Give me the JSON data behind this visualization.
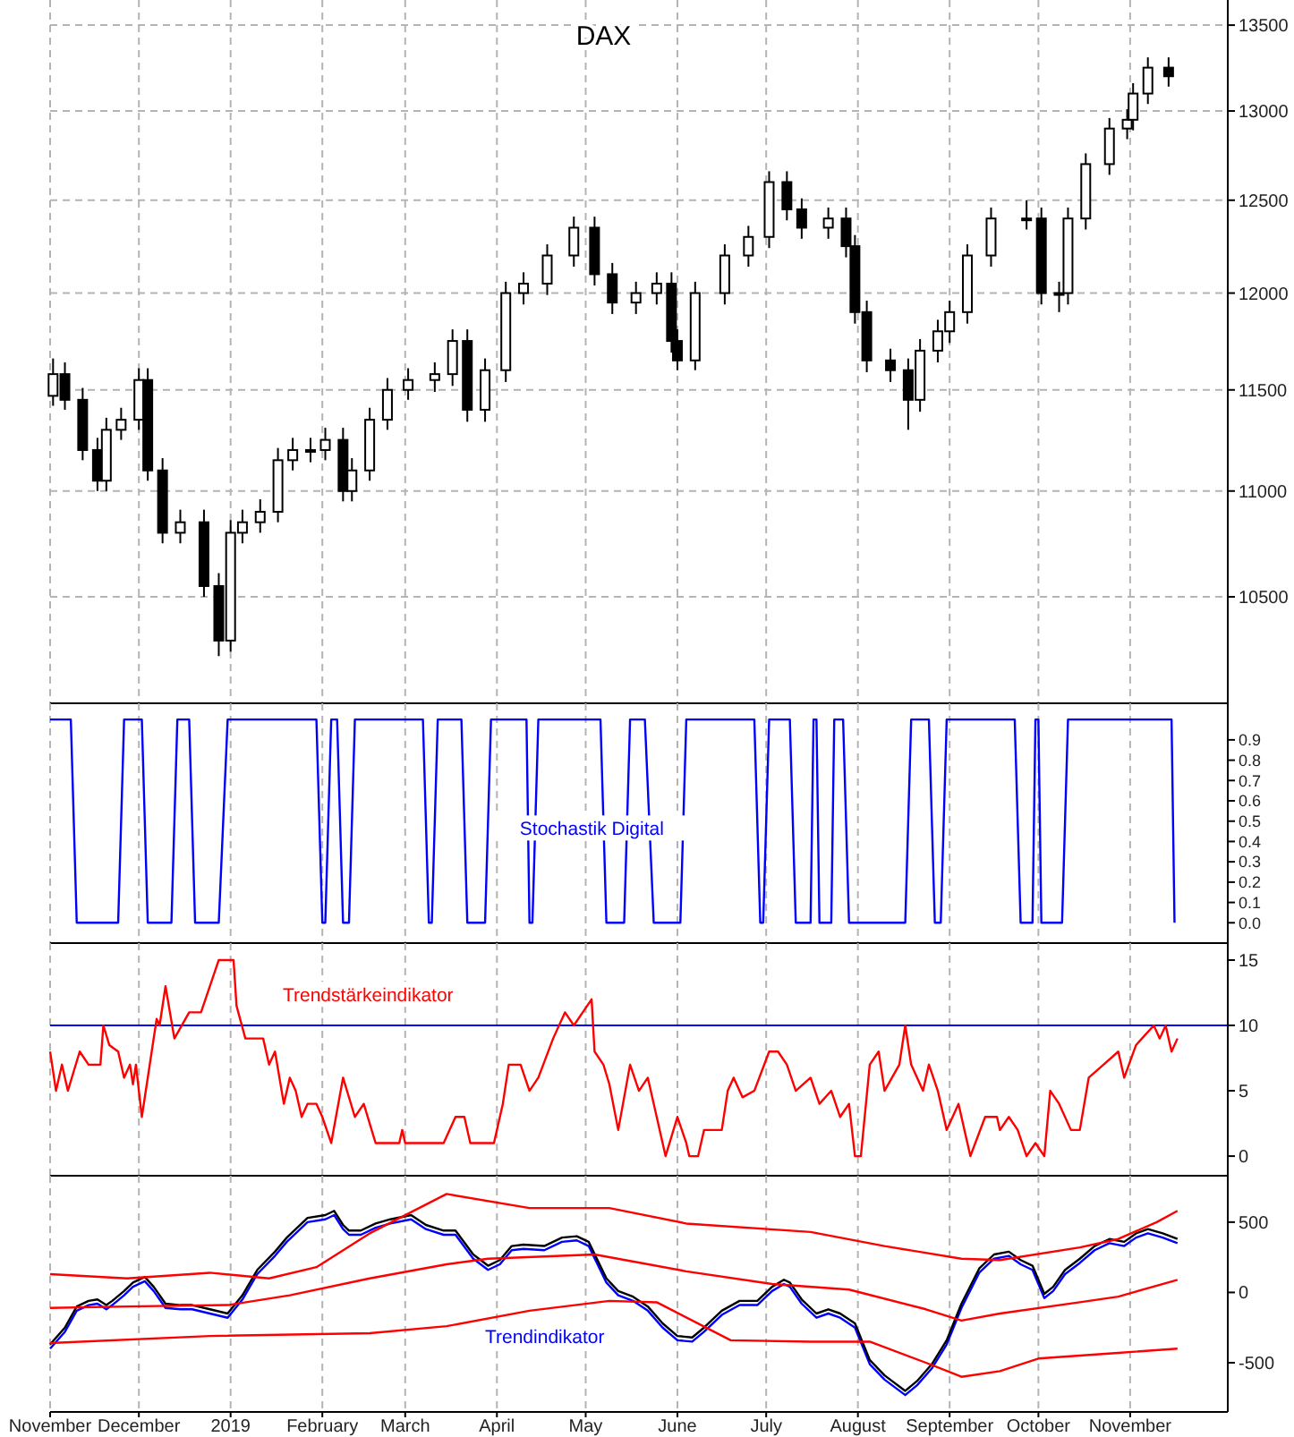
{
  "chart_data": [
    {
      "type": "candlestick",
      "title": "DAX",
      "log": true,
      "grid": true,
      "tick_labels": "y",
      "xlim": [
        "2018-11-01",
        "2019-12-04"
      ],
      "ylim": [
        10020,
        13650
      ],
      "xticks": [
        {
          "value": "2018-11-01",
          "label": null
        },
        {
          "value": "2018-12-01",
          "label": null
        },
        {
          "value": "2019-01-01",
          "label": null
        },
        {
          "value": "2019-02-01",
          "label": null
        },
        {
          "value": "2019-03-01",
          "label": null
        },
        {
          "value": "2019-04-01",
          "label": null
        },
        {
          "value": "2019-05-01",
          "label": null
        },
        {
          "value": "2019-06-01",
          "label": null
        },
        {
          "value": "2019-07-01",
          "label": null
        },
        {
          "value": "2019-08-01",
          "label": null
        },
        {
          "value": "2019-09-01",
          "label": null
        },
        {
          "value": "2019-10-01",
          "label": null
        },
        {
          "value": "2019-11-01",
          "label": null
        }
      ],
      "yticks": [
        10500,
        11000,
        11500,
        12000,
        12500,
        13000,
        13500
      ],
      "x": [
        "2018-11-02",
        "2018-11-06",
        "2018-11-12",
        "2018-11-17",
        "2018-11-20",
        "2018-11-25",
        "2018-12-01",
        "2018-12-04",
        "2018-12-09",
        "2018-12-15",
        "2018-12-23",
        "2018-12-28",
        "2019-01-01",
        "2019-01-05",
        "2019-01-11",
        "2019-01-17",
        "2019-01-22",
        "2019-01-28",
        "2019-02-02",
        "2019-02-08",
        "2019-02-11",
        "2019-02-17",
        "2019-02-23",
        "2019-03-02",
        "2019-03-11",
        "2019-03-17",
        "2019-03-22",
        "2019-03-28",
        "2019-04-04",
        "2019-04-10",
        "2019-04-18",
        "2019-04-27",
        "2019-05-04",
        "2019-05-10",
        "2019-05-18",
        "2019-05-25",
        "2019-05-30",
        "2019-06-01",
        "2019-06-07",
        "2019-06-17",
        "2019-06-25",
        "2019-07-02",
        "2019-07-08",
        "2019-07-13",
        "2019-07-22",
        "2019-07-28",
        "2019-07-31",
        "2019-08-04",
        "2019-08-12",
        "2019-08-18",
        "2019-08-22",
        "2019-08-28",
        "2019-09-01",
        "2019-09-07",
        "2019-09-15",
        "2019-09-27",
        "2019-10-02",
        "2019-10-08",
        "2019-10-11",
        "2019-10-17",
        "2019-10-25",
        "2019-10-31",
        "2019-11-02",
        "2019-11-07",
        "2019-11-14"
      ],
      "ohlc": [
        [
          11470,
          11660,
          11420,
          11580
        ],
        [
          11580,
          11640,
          11400,
          11450
        ],
        [
          11450,
          11510,
          11150,
          11200
        ],
        [
          11200,
          11260,
          11000,
          11050
        ],
        [
          11050,
          11360,
          11000,
          11300
        ],
        [
          11300,
          11410,
          11250,
          11350
        ],
        [
          11350,
          11610,
          11300,
          11550
        ],
        [
          11550,
          11610,
          11050,
          11100
        ],
        [
          11100,
          11160,
          10750,
          10800
        ],
        [
          10800,
          10910,
          10750,
          10850
        ],
        [
          10850,
          10910,
          10500,
          10550
        ],
        [
          10550,
          10610,
          10230,
          10300
        ],
        [
          10300,
          10860,
          10250,
          10800
        ],
        [
          10800,
          10910,
          10750,
          10850
        ],
        [
          10850,
          10960,
          10800,
          10900
        ],
        [
          10900,
          11210,
          10850,
          11150
        ],
        [
          11150,
          11260,
          11100,
          11200
        ],
        [
          11200,
          11260,
          11140,
          11200
        ],
        [
          11200,
          11310,
          11150,
          11250
        ],
        [
          11250,
          11310,
          10950,
          11000
        ],
        [
          11000,
          11160,
          10950,
          11100
        ],
        [
          11100,
          11410,
          11050,
          11350
        ],
        [
          11350,
          11560,
          11300,
          11500
        ],
        [
          11500,
          11610,
          11450,
          11550
        ],
        [
          11550,
          11640,
          11490,
          11580
        ],
        [
          11580,
          11810,
          11520,
          11750
        ],
        [
          11750,
          11810,
          11340,
          11400
        ],
        [
          11400,
          11660,
          11340,
          11600
        ],
        [
          11600,
          12060,
          11540,
          12000
        ],
        [
          12000,
          12110,
          11940,
          12050
        ],
        [
          12050,
          12260,
          11990,
          12200
        ],
        [
          12200,
          12410,
          12140,
          12350
        ],
        [
          12350,
          12410,
          12040,
          12100
        ],
        [
          12100,
          12160,
          11890,
          11950
        ],
        [
          11950,
          12060,
          11890,
          12000
        ],
        [
          12000,
          12110,
          11940,
          12050
        ],
        [
          12050,
          12110,
          11690,
          11750
        ],
        [
          11750,
          11810,
          11600,
          11650
        ],
        [
          11650,
          12060,
          11600,
          12000
        ],
        [
          12000,
          12260,
          11940,
          12200
        ],
        [
          12200,
          12360,
          12140,
          12300
        ],
        [
          12300,
          12660,
          12240,
          12600
        ],
        [
          12600,
          12660,
          12390,
          12450
        ],
        [
          12450,
          12510,
          12290,
          12350
        ],
        [
          12350,
          12460,
          12290,
          12400
        ],
        [
          12400,
          12460,
          12190,
          12250
        ],
        [
          12250,
          12310,
          11840,
          11900
        ],
        [
          11900,
          11960,
          11590,
          11650
        ],
        [
          11650,
          11710,
          11540,
          11600
        ],
        [
          11600,
          11660,
          11300,
          11450
        ],
        [
          11450,
          11760,
          11390,
          11700
        ],
        [
          11700,
          11860,
          11640,
          11800
        ],
        [
          11800,
          11960,
          11740,
          11900
        ],
        [
          11900,
          12260,
          11840,
          12200
        ],
        [
          12200,
          12460,
          12140,
          12400
        ],
        [
          12400,
          12500,
          12340,
          12400
        ],
        [
          12400,
          12460,
          11940,
          12000
        ],
        [
          12000,
          12060,
          11900,
          12000
        ],
        [
          12000,
          12460,
          11940,
          12400
        ],
        [
          12400,
          12760,
          12340,
          12700
        ],
        [
          12700,
          12960,
          12640,
          12900
        ],
        [
          12900,
          13010,
          12840,
          12950
        ],
        [
          12950,
          13160,
          12890,
          13100
        ],
        [
          13100,
          13310,
          13040,
          13250
        ],
        [
          13250,
          13310,
          13140,
          13200
        ]
      ]
    },
    {
      "type": "line",
      "title": "Stochastik Digital",
      "grid": "x",
      "tick_labels": "y",
      "xlim": [
        "2018-11-01",
        "2019-12-04"
      ],
      "ylim": [
        -0.1,
        1.08
      ],
      "xticks": [
        {
          "value": "2018-11-01",
          "label": null
        },
        {
          "value": "2018-12-01",
          "label": null
        },
        {
          "value": "2019-01-01",
          "label": null
        },
        {
          "value": "2019-02-01",
          "label": null
        },
        {
          "value": "2019-03-01",
          "label": null
        },
        {
          "value": "2019-04-01",
          "label": null
        },
        {
          "value": "2019-05-01",
          "label": null
        },
        {
          "value": "2019-06-01",
          "label": null
        },
        {
          "value": "2019-07-01",
          "label": null
        },
        {
          "value": "2019-08-01",
          "label": null
        },
        {
          "value": "2019-09-01",
          "label": null
        },
        {
          "value": "2019-10-01",
          "label": null
        },
        {
          "value": "2019-11-01",
          "label": null
        }
      ],
      "yticks": [
        {
          "value": 0,
          "label": "0.0"
        },
        {
          "value": 0.1,
          "label": "0.1"
        },
        {
          "value": 0.2,
          "label": "0.2"
        },
        {
          "value": 0.3,
          "label": "0.3"
        },
        {
          "value": 0.4,
          "label": "0.4"
        },
        {
          "value": 0.5,
          "label": "0.5"
        },
        {
          "value": 0.6,
          "label": "0.6"
        },
        {
          "value": 0.7,
          "label": "0.7"
        },
        {
          "value": 0.8,
          "label": "0.8"
        },
        {
          "value": 0.9,
          "label": "0.9"
        }
      ],
      "series": [
        {
          "color": "#0000ff",
          "x": [
            "2018-11-01",
            "2018-11-08",
            "2018-11-10",
            "2018-11-24",
            "2018-11-26",
            "2018-12-02",
            "2018-12-04",
            "2018-12-12",
            "2018-12-14",
            "2018-12-18",
            "2018-12-20",
            "2018-12-28",
            "2018-12-31",
            "2019-01-30",
            "2019-02-01",
            "2019-02-02",
            "2019-02-04",
            "2019-02-06",
            "2019-02-08",
            "2019-02-10",
            "2019-02-12",
            "2019-03-07",
            "2019-03-09",
            "2019-03-10",
            "2019-03-12",
            "2019-03-20",
            "2019-03-22",
            "2019-03-28",
            "2019-03-30",
            "2019-04-11",
            "2019-04-12",
            "2019-04-13",
            "2019-04-15",
            "2019-05-06",
            "2019-05-08",
            "2019-05-14",
            "2019-05-16",
            "2019-05-21",
            "2019-05-24",
            "2019-06-02",
            "2019-06-04",
            "2019-06-27",
            "2019-06-29",
            "2019-06-30",
            "2019-07-02",
            "2019-07-09",
            "2019-07-11",
            "2019-07-16",
            "2019-07-17",
            "2019-07-18",
            "2019-07-19",
            "2019-07-23",
            "2019-07-24",
            "2019-07-27",
            "2019-07-29",
            "2019-08-17",
            "2019-08-19",
            "2019-08-25",
            "2019-08-27",
            "2019-08-29",
            "2019-08-31",
            "2019-09-23",
            "2019-09-25",
            "2019-09-29",
            "2019-09-30",
            "2019-10-01",
            "2019-10-02",
            "2019-10-09",
            "2019-10-11",
            "2019-11-15",
            "2019-11-16"
          ],
          "values": [
            1,
            1,
            0,
            0,
            1,
            1,
            0,
            0,
            1,
            1,
            0,
            0,
            1,
            1,
            0,
            0,
            1,
            1,
            0,
            0,
            1,
            1,
            0,
            0,
            1,
            1,
            0,
            0,
            1,
            1,
            0,
            0,
            1,
            1,
            0,
            0,
            1,
            1,
            0,
            0,
            1,
            1,
            0,
            0,
            1,
            1,
            0,
            0,
            1,
            1,
            0,
            0,
            1,
            1,
            0,
            0,
            1,
            1,
            0,
            0,
            1,
            1,
            0,
            0,
            1,
            1,
            0,
            0,
            1,
            1,
            0
          ]
        }
      ]
    },
    {
      "type": "line",
      "title": "Trendstärkeindikator",
      "grid": "x",
      "tick_labels": "y",
      "xlim": [
        "2018-11-01",
        "2019-12-04"
      ],
      "ylim": [
        -1.5,
        16.3
      ],
      "xticks": [
        {
          "value": "2018-11-01",
          "label": null
        },
        {
          "value": "2018-12-01",
          "label": null
        },
        {
          "value": "2019-01-01",
          "label": null
        },
        {
          "value": "2019-02-01",
          "label": null
        },
        {
          "value": "2019-03-01",
          "label": null
        },
        {
          "value": "2019-04-01",
          "label": null
        },
        {
          "value": "2019-05-01",
          "label": null
        },
        {
          "value": "2019-06-01",
          "label": null
        },
        {
          "value": "2019-07-01",
          "label": null
        },
        {
          "value": "2019-08-01",
          "label": null
        },
        {
          "value": "2019-09-01",
          "label": null
        },
        {
          "value": "2019-10-01",
          "label": null
        },
        {
          "value": "2019-11-01",
          "label": null
        }
      ],
      "yticks": [
        0,
        5,
        10,
        15
      ],
      "ref_lines": [
        {
          "axis": "y",
          "value": 10,
          "color": "#0000ff"
        }
      ],
      "series": [
        {
          "color": "#ff0000",
          "x": [
            "2018-11-01",
            "2018-11-03",
            "2018-11-05",
            "2018-11-07",
            "2018-11-11",
            "2018-11-14",
            "2018-11-18",
            "2018-11-19",
            "2018-11-21",
            "2018-11-24",
            "2018-11-26",
            "2018-11-28",
            "2018-11-29",
            "2018-11-30",
            "2018-12-02",
            "2018-12-04",
            "2018-12-07",
            "2018-12-08",
            "2018-12-10",
            "2018-12-13",
            "2018-12-18",
            "2018-12-22",
            "2018-12-25",
            "2018-12-28",
            "2019-01-02",
            "2019-01-03",
            "2019-01-06",
            "2019-01-12",
            "2019-01-14",
            "2019-01-16",
            "2019-01-19",
            "2019-01-21",
            "2019-01-23",
            "2019-01-25",
            "2019-01-27",
            "2019-01-30",
            "2019-02-01",
            "2019-02-04",
            "2019-02-08",
            "2019-02-12",
            "2019-02-15",
            "2019-02-19",
            "2019-02-27",
            "2019-02-28",
            "2019-03-01",
            "2019-03-14",
            "2019-03-18",
            "2019-03-21",
            "2019-03-23",
            "2019-03-31",
            "2019-04-03",
            "2019-04-05",
            "2019-04-09",
            "2019-04-12",
            "2019-04-15",
            "2019-04-20",
            "2019-04-24",
            "2019-04-27",
            "2019-04-30",
            "2019-05-03",
            "2019-05-04",
            "2019-05-07",
            "2019-05-09",
            "2019-05-12",
            "2019-05-16",
            "2019-05-19",
            "2019-05-22",
            "2019-05-25",
            "2019-05-28",
            "2019-06-01",
            "2019-06-04",
            "2019-06-05",
            "2019-06-08",
            "2019-06-10",
            "2019-06-16",
            "2019-06-18",
            "2019-06-20",
            "2019-06-23",
            "2019-06-27",
            "2019-07-02",
            "2019-07-05",
            "2019-07-08",
            "2019-07-11",
            "2019-07-16",
            "2019-07-19",
            "2019-07-23",
            "2019-07-26",
            "2019-07-29",
            "2019-07-31",
            "2019-08-02",
            "2019-08-05",
            "2019-08-08",
            "2019-08-10",
            "2019-08-15",
            "2019-08-17",
            "2019-08-19",
            "2019-08-23",
            "2019-08-25",
            "2019-08-28",
            "2019-08-31",
            "2019-09-04",
            "2019-09-08",
            "2019-09-13",
            "2019-09-17",
            "2019-09-18",
            "2019-09-21",
            "2019-09-24",
            "2019-09-27",
            "2019-09-30",
            "2019-10-03",
            "2019-10-05",
            "2019-10-08",
            "2019-10-12",
            "2019-10-15",
            "2019-10-18",
            "2019-10-23",
            "2019-10-28",
            "2019-10-30",
            "2019-11-03",
            "2019-11-09",
            "2019-11-11",
            "2019-11-13",
            "2019-11-15",
            "2019-11-17"
          ],
          "values": [
            8,
            5,
            7,
            5,
            8,
            7,
            7,
            10,
            8.5,
            8,
            6,
            7,
            5.5,
            7,
            3,
            6,
            10.5,
            10,
            13,
            9,
            11,
            11,
            13,
            15,
            15,
            11.5,
            9,
            9,
            7,
            8,
            4,
            6,
            5,
            3,
            4,
            4,
            3,
            1,
            6,
            3,
            4,
            1,
            1,
            2,
            1,
            1,
            3,
            3,
            1,
            1,
            4,
            7,
            7,
            5,
            6,
            9,
            11,
            10,
            11,
            12,
            8,
            7,
            5.5,
            2,
            7,
            5,
            6,
            3,
            0,
            3,
            1,
            0,
            0,
            2,
            2,
            5,
            6,
            4.5,
            5,
            8,
            8,
            7,
            5,
            6,
            4,
            5,
            3,
            4,
            0,
            0,
            7,
            8,
            5,
            7,
            10,
            7,
            5,
            7,
            5,
            2,
            4,
            0,
            3,
            3,
            2,
            3,
            2,
            0,
            1,
            0,
            5,
            4,
            2,
            2,
            6,
            7,
            8,
            6,
            8.5,
            10,
            9,
            10,
            8,
            9
          ]
        }
      ]
    },
    {
      "type": "line",
      "title": "Trendindikator",
      "grid": "x",
      "xlim": [
        "2018-11-01",
        "2019-12-04"
      ],
      "ylim": [
        -850,
        830
      ],
      "xticks": [
        {
          "value": "2018-11-01",
          "label": "November"
        },
        {
          "value": "2018-12-01",
          "label": "December"
        },
        {
          "value": "2019-01-01",
          "label": "2019"
        },
        {
          "value": "2019-02-01",
          "label": "February"
        },
        {
          "value": "2019-03-01",
          "label": "March"
        },
        {
          "value": "2019-04-01",
          "label": "April"
        },
        {
          "value": "2019-05-01",
          "label": "May"
        },
        {
          "value": "2019-06-01",
          "label": "June"
        },
        {
          "value": "2019-07-01",
          "label": "July"
        },
        {
          "value": "2019-08-01",
          "label": "August"
        },
        {
          "value": "2019-09-01",
          "label": "September"
        },
        {
          "value": "2019-10-01",
          "label": "October"
        },
        {
          "value": "2019-11-01",
          "label": "November"
        }
      ],
      "yticks": [
        -500,
        0,
        500
      ],
      "series": [
        {
          "color": "#0000ff",
          "x": [
            "2018-11-01",
            "2018-11-06",
            "2018-11-10",
            "2018-11-14",
            "2018-11-17",
            "2018-11-20",
            "2018-11-22",
            "2018-11-26",
            "2018-11-29",
            "2018-12-03",
            "2018-12-06",
            "2018-12-10",
            "2018-12-15",
            "2018-12-19",
            "2018-12-25",
            "2018-12-31",
            "2019-01-05",
            "2019-01-10",
            "2019-01-16",
            "2019-01-20",
            "2019-01-27",
            "2019-02-02",
            "2019-02-05",
            "2019-02-08",
            "2019-02-10",
            "2019-02-14",
            "2019-02-19",
            "2019-02-24",
            "2019-03-03",
            "2019-03-08",
            "2019-03-14",
            "2019-03-18",
            "2019-03-24",
            "2019-03-29",
            "2019-04-02",
            "2019-04-06",
            "2019-04-10",
            "2019-04-17",
            "2019-04-23",
            "2019-04-28",
            "2019-05-02",
            "2019-05-08",
            "2019-05-12",
            "2019-05-17",
            "2019-05-22",
            "2019-05-27",
            "2019-06-01",
            "2019-06-06",
            "2019-06-10",
            "2019-06-16",
            "2019-06-22",
            "2019-06-28",
            "2019-07-03",
            "2019-07-07",
            "2019-07-09",
            "2019-07-13",
            "2019-07-18",
            "2019-07-22",
            "2019-07-26",
            "2019-07-31",
            "2019-08-05",
            "2019-08-10",
            "2019-08-17",
            "2019-08-21",
            "2019-08-26",
            "2019-08-31",
            "2019-09-05",
            "2019-09-11",
            "2019-09-16",
            "2019-09-21",
            "2019-09-25",
            "2019-09-29",
            "2019-10-03",
            "2019-10-06",
            "2019-10-10",
            "2019-10-15",
            "2019-10-20",
            "2019-10-25",
            "2019-10-30",
            "2019-11-03",
            "2019-11-07",
            "2019-11-12",
            "2019-11-17"
          ],
          "values": [
            -400,
            -280,
            -130,
            -90,
            -80,
            -120,
            -90,
            -20,
            40,
            80,
            10,
            -110,
            -120,
            -120,
            -150,
            -180,
            -50,
            130,
            260,
            360,
            500,
            520,
            550,
            450,
            410,
            410,
            460,
            490,
            520,
            450,
            410,
            410,
            240,
            160,
            200,
            300,
            310,
            300,
            360,
            370,
            330,
            70,
            -20,
            -60,
            -130,
            -250,
            -340,
            -350,
            -280,
            -160,
            -90,
            -90,
            10,
            60,
            40,
            -80,
            -180,
            -150,
            -180,
            -250,
            -510,
            -620,
            -730,
            -660,
            -540,
            -370,
            -110,
            140,
            240,
            260,
            200,
            160,
            -40,
            10,
            130,
            210,
            300,
            350,
            330,
            390,
            420,
            390,
            350
          ]
        },
        {
          "color": "#000000",
          "x": [
            "2018-11-01",
            "2018-11-06",
            "2018-11-10",
            "2018-11-14",
            "2018-11-17",
            "2018-11-20",
            "2018-11-22",
            "2018-11-26",
            "2018-11-29",
            "2018-12-03",
            "2018-12-06",
            "2018-12-10",
            "2018-12-15",
            "2018-12-19",
            "2018-12-25",
            "2018-12-31",
            "2019-01-05",
            "2019-01-10",
            "2019-01-16",
            "2019-01-20",
            "2019-01-27",
            "2019-02-02",
            "2019-02-05",
            "2019-02-08",
            "2019-02-10",
            "2019-02-14",
            "2019-02-19",
            "2019-02-24",
            "2019-03-03",
            "2019-03-08",
            "2019-03-14",
            "2019-03-18",
            "2019-03-24",
            "2019-03-29",
            "2019-04-02",
            "2019-04-06",
            "2019-04-10",
            "2019-04-17",
            "2019-04-23",
            "2019-04-28",
            "2019-05-02",
            "2019-05-08",
            "2019-05-12",
            "2019-05-17",
            "2019-05-22",
            "2019-05-27",
            "2019-06-01",
            "2019-06-06",
            "2019-06-10",
            "2019-06-16",
            "2019-06-22",
            "2019-06-28",
            "2019-07-03",
            "2019-07-07",
            "2019-07-09",
            "2019-07-13",
            "2019-07-18",
            "2019-07-22",
            "2019-07-26",
            "2019-07-31",
            "2019-08-05",
            "2019-08-10",
            "2019-08-17",
            "2019-08-21",
            "2019-08-26",
            "2019-08-31",
            "2019-09-05",
            "2019-09-11",
            "2019-09-16",
            "2019-09-21",
            "2019-09-25",
            "2019-09-29",
            "2019-10-03",
            "2019-10-06",
            "2019-10-10",
            "2019-10-15",
            "2019-10-20",
            "2019-10-25",
            "2019-10-30",
            "2019-11-03",
            "2019-11-07",
            "2019-11-12",
            "2019-11-17"
          ],
          "values": [
            -370,
            -250,
            -100,
            -60,
            -50,
            -90,
            -60,
            10,
            70,
            110,
            40,
            -80,
            -90,
            -90,
            -120,
            -150,
            -20,
            160,
            290,
            390,
            530,
            550,
            580,
            480,
            440,
            440,
            490,
            520,
            550,
            480,
            440,
            440,
            270,
            190,
            230,
            330,
            340,
            330,
            390,
            400,
            360,
            100,
            10,
            -30,
            -100,
            -220,
            -310,
            -320,
            -250,
            -130,
            -60,
            -60,
            40,
            90,
            70,
            -50,
            -150,
            -120,
            -150,
            -220,
            -480,
            -590,
            -700,
            -630,
            -510,
            -340,
            -80,
            170,
            270,
            290,
            230,
            190,
            -10,
            40,
            160,
            240,
            330,
            380,
            360,
            420,
            450,
            420,
            380
          ]
        },
        {
          "color": "#ff0000",
          "x": [
            "2018-11-01",
            "2018-11-27",
            "2018-12-25",
            "2019-01-14",
            "2019-01-30",
            "2019-02-17",
            "2019-03-15",
            "2019-04-12",
            "2019-05-09",
            "2019-06-04",
            "2019-07-16",
            "2019-08-10",
            "2019-09-05",
            "2019-09-18",
            "2019-10-15",
            "2019-10-28",
            "2019-11-10",
            "2019-11-17"
          ],
          "values": [
            130,
            100,
            140,
            100,
            180,
            420,
            700,
            600,
            600,
            490,
            430,
            330,
            240,
            230,
            320,
            380,
            500,
            580
          ]
        },
        {
          "color": "#ff0000",
          "x": [
            "2018-11-01",
            "2018-11-27",
            "2018-12-31",
            "2019-01-21",
            "2019-02-17",
            "2019-03-15",
            "2019-03-29",
            "2019-05-04",
            "2019-06-04",
            "2019-07-03",
            "2019-07-29",
            "2019-08-24",
            "2019-09-05",
            "2019-09-18",
            "2019-10-15",
            "2019-10-28",
            "2019-11-17"
          ],
          "values": [
            -110,
            -100,
            -90,
            -20,
            100,
            200,
            240,
            270,
            150,
            60,
            20,
            -120,
            -200,
            -150,
            -70,
            -30,
            90
          ]
        },
        {
          "color": "#ff0000",
          "x": [
            "2018-11-01",
            "2018-12-25",
            "2019-02-17",
            "2019-03-15",
            "2019-04-12",
            "2019-05-09",
            "2019-05-25",
            "2019-06-19",
            "2019-07-16",
            "2019-08-05",
            "2019-08-24",
            "2019-09-05",
            "2019-09-18",
            "2019-10-01",
            "2019-10-28",
            "2019-11-17"
          ],
          "values": [
            -360,
            -310,
            -290,
            -240,
            -130,
            -60,
            -70,
            -340,
            -350,
            -350,
            -500,
            -600,
            -560,
            -470,
            -430,
            -400
          ]
        }
      ]
    }
  ]
}
